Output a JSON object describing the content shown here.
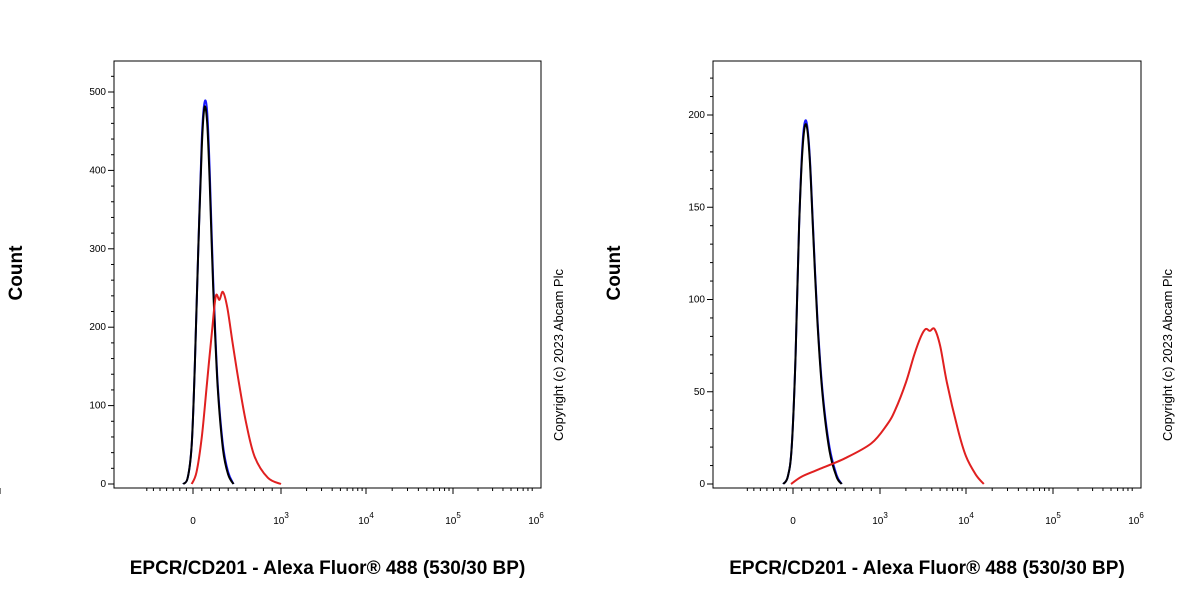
{
  "chart_data": [
    {
      "type": "line",
      "title": "",
      "xlabel": "EPCR/CD201 - Alexa Fluor® 488 (530/30 BP)",
      "ylabel": "Count",
      "x_scale": "biexponential",
      "x_tick_labels": [
        "0",
        "10^3",
        "10^4",
        "10^5",
        "10^6"
      ],
      "y_ticks": [
        0,
        100,
        200,
        300,
        400,
        500
      ],
      "ylim": [
        0,
        500
      ],
      "grid": false,
      "copyright": "Copyright (c) 2023 Abcam Plc",
      "series": [
        {
          "color": "#1a1aff",
          "points": [
            [
              -150,
              0
            ],
            [
              -80,
              8
            ],
            [
              -20,
              50
            ],
            [
              20,
              150
            ],
            [
              60,
              300
            ],
            [
              100,
              440
            ],
            [
              130,
              486
            ],
            [
              160,
              476
            ],
            [
              190,
              400
            ],
            [
              230,
              260
            ],
            [
              280,
              130
            ],
            [
              340,
              50
            ],
            [
              400,
              15
            ],
            [
              460,
              0
            ]
          ]
        },
        {
          "color": "#000000",
          "points": [
            [
              -150,
              0
            ],
            [
              -80,
              8
            ],
            [
              -20,
              50
            ],
            [
              20,
              150
            ],
            [
              60,
              300
            ],
            [
              100,
              430
            ],
            [
              130,
              480
            ],
            [
              160,
              462
            ],
            [
              190,
              385
            ],
            [
              230,
              250
            ],
            [
              280,
              125
            ],
            [
              340,
              45
            ],
            [
              400,
              12
            ],
            [
              460,
              0
            ]
          ]
        },
        {
          "color": "#e02020",
          "points": [
            [
              -20,
              0
            ],
            [
              40,
              15
            ],
            [
              100,
              60
            ],
            [
              160,
              130
            ],
            [
              220,
              200
            ],
            [
              260,
              240
            ],
            [
              300,
              235
            ],
            [
              340,
              245
            ],
            [
              390,
              225
            ],
            [
              450,
              180
            ],
            [
              520,
              130
            ],
            [
              600,
              80
            ],
            [
              700,
              35
            ],
            [
              850,
              8
            ],
            [
              1000,
              0
            ]
          ]
        }
      ]
    },
    {
      "type": "line",
      "title": "",
      "xlabel": "EPCR/CD201 - Alexa Fluor® 488 (530/30 BP)",
      "ylabel": "Count",
      "x_scale": "biexponential",
      "x_tick_labels": [
        "0",
        "10^3",
        "10^4",
        "10^5",
        "10^6"
      ],
      "y_ticks": [
        0,
        50,
        100,
        150,
        200
      ],
      "ylim": [
        0,
        200
      ],
      "grid": false,
      "copyright": "Copyright (c) 2023 Abcam Plc",
      "series": [
        {
          "color": "#1a1aff",
          "points": [
            [
              -150,
              0
            ],
            [
              -80,
              4
            ],
            [
              -20,
              20
            ],
            [
              30,
              70
            ],
            [
              70,
              140
            ],
            [
              110,
              185
            ],
            [
              150,
              197
            ],
            [
              190,
              180
            ],
            [
              230,
              140
            ],
            [
              280,
              90
            ],
            [
              340,
              50
            ],
            [
              420,
              20
            ],
            [
              500,
              5
            ],
            [
              560,
              0
            ]
          ]
        },
        {
          "color": "#000000",
          "points": [
            [
              -150,
              0
            ],
            [
              -80,
              4
            ],
            [
              -20,
              20
            ],
            [
              30,
              70
            ],
            [
              70,
              140
            ],
            [
              110,
              182
            ],
            [
              150,
              195
            ],
            [
              190,
              178
            ],
            [
              230,
              138
            ],
            [
              280,
              88
            ],
            [
              340,
              48
            ],
            [
              420,
              18
            ],
            [
              500,
              4
            ],
            [
              560,
              0
            ]
          ]
        },
        {
          "color": "#e02020",
          "points": [
            [
              -30,
              0
            ],
            [
              100,
              4
            ],
            [
              300,
              8
            ],
            [
              600,
              14
            ],
            [
              900,
              22
            ],
            [
              1200,
              32
            ],
            [
              1500,
              40
            ],
            [
              2000,
              55
            ],
            [
              2500,
              70
            ],
            [
              3000,
              80
            ],
            [
              3400,
              84
            ],
            [
              3800,
              83
            ],
            [
              4300,
              84
            ],
            [
              5000,
              75
            ],
            [
              6000,
              55
            ],
            [
              8000,
              30
            ],
            [
              10000,
              15
            ],
            [
              13000,
              5
            ],
            [
              16000,
              0
            ]
          ]
        }
      ]
    }
  ]
}
